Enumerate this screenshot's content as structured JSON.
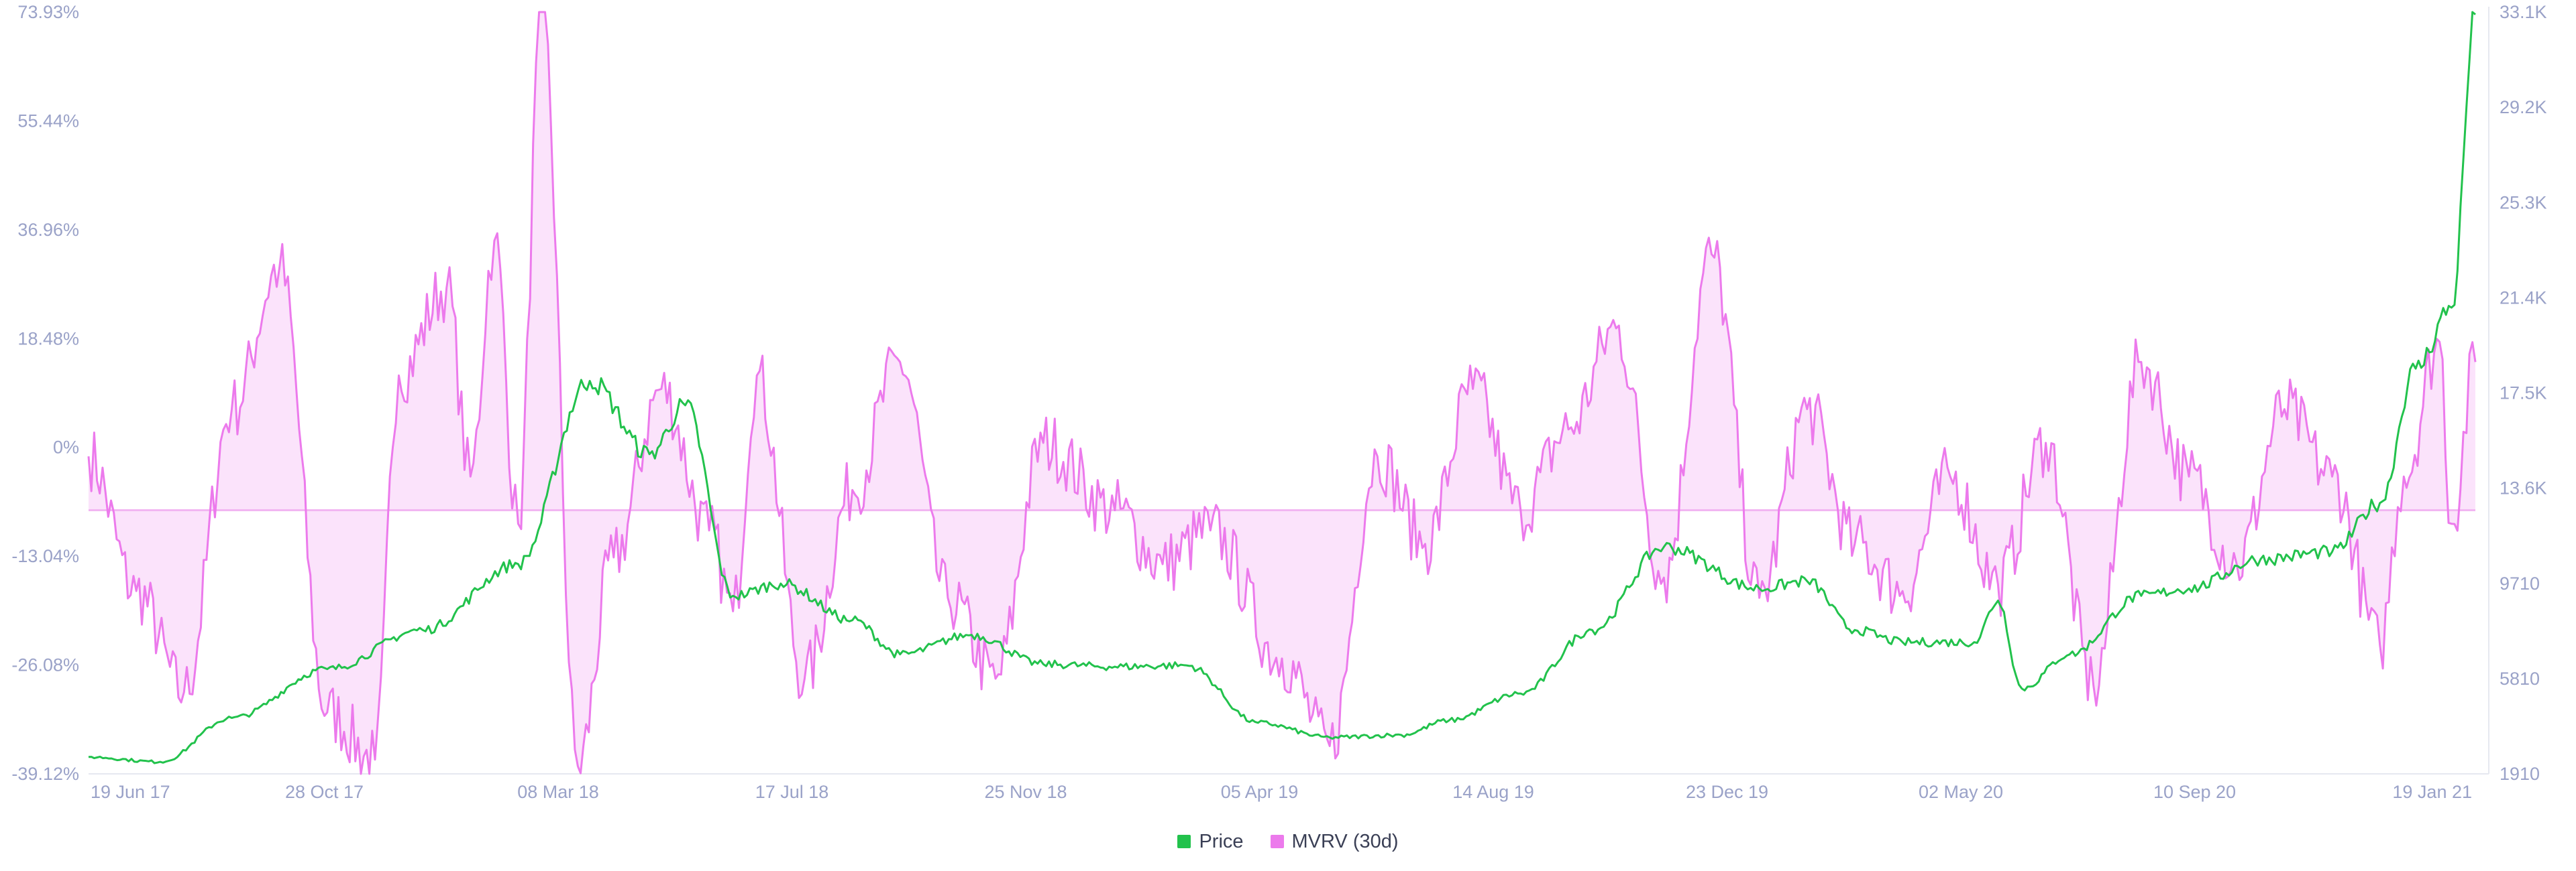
{
  "chart_data": {
    "type": "line",
    "left_axis": {
      "ticks": [
        "73.93%",
        "55.44%",
        "36.96%",
        "18.48%",
        "0%",
        "-13.04%",
        "-26.08%",
        "-39.12%"
      ],
      "ylim": [
        -39.12,
        73.93
      ]
    },
    "right_axis": {
      "ticks": [
        "33.1K",
        "29.2K",
        "25.3K",
        "21.4K",
        "17.5K",
        "13.6K",
        "9710",
        "5810",
        "1910"
      ],
      "ylim": [
        1910,
        33100
      ]
    },
    "x_ticks": [
      "19 Jun 17",
      "28 Oct 17",
      "08 Mar 18",
      "17 Jul 18",
      "25 Nov 18",
      "05 Apr 19",
      "14 Aug 19",
      "23 Dec 19",
      "02 May 20",
      "10 Sep 20",
      "19 Jan 21"
    ],
    "grid": false,
    "legend_position": "bottom-center",
    "series": [
      {
        "name": "Price",
        "axis": "right",
        "color": "#22c24c",
        "t": [
          0,
          0.03,
          0.06,
          0.1,
          0.14,
          0.18,
          0.21,
          0.235,
          0.25,
          0.27,
          0.29,
          0.32,
          0.34,
          0.37,
          0.4,
          0.43,
          0.46,
          0.49,
          0.52,
          0.55,
          0.57,
          0.6,
          0.63,
          0.66,
          0.7,
          0.72,
          0.74,
          0.76,
          0.79,
          0.8,
          0.81,
          0.83,
          0.86,
          0.88,
          0.91,
          0.94,
          0.96,
          0.975,
          0.99,
          1.0
        ],
        "values": [
          2600,
          2400,
          4200,
          6200,
          7800,
          10500,
          18000,
          15000,
          17000,
          9200,
          9700,
          8200,
          6800,
          7600,
          6400,
          6300,
          6350,
          4000,
          3400,
          3500,
          4100,
          5200,
          7800,
          11200,
          9500,
          9800,
          7800,
          7300,
          7300,
          9000,
          5400,
          6800,
          9200,
          9500,
          10700,
          11000,
          13000,
          18500,
          21000,
          33000
        ]
      },
      {
        "name": "MVRV (30d)",
        "axis": "left",
        "color": "#ec7aec",
        "fill": "#fbe3fb",
        "t": [
          0,
          0.02,
          0.04,
          0.06,
          0.08,
          0.1,
          0.12,
          0.13,
          0.15,
          0.16,
          0.17,
          0.18,
          0.19,
          0.205,
          0.22,
          0.24,
          0.26,
          0.27,
          0.28,
          0.3,
          0.32,
          0.34,
          0.36,
          0.38,
          0.4,
          0.43,
          0.45,
          0.47,
          0.5,
          0.52,
          0.54,
          0.56,
          0.58,
          0.6,
          0.62,
          0.64,
          0.66,
          0.68,
          0.7,
          0.72,
          0.74,
          0.76,
          0.78,
          0.8,
          0.82,
          0.84,
          0.86,
          0.88,
          0.9,
          0.92,
          0.94,
          0.96,
          0.97,
          0.985,
          0.99,
          1.0
        ],
        "values": [
          8,
          -12,
          -27,
          15,
          36,
          -30,
          -37,
          20,
          33,
          5,
          40,
          -2,
          74,
          -38,
          -7,
          18,
          -3,
          -15,
          20,
          -25,
          3,
          22,
          -13,
          -25,
          10,
          0,
          -8,
          -3,
          -22,
          -35,
          8,
          -5,
          18,
          0,
          12,
          27,
          -10,
          38,
          -13,
          15,
          -5,
          -12,
          5,
          -11,
          10,
          -26,
          22,
          5,
          -8,
          15,
          5,
          -20,
          5,
          25,
          -2,
          22
        ]
      }
    ]
  }
}
